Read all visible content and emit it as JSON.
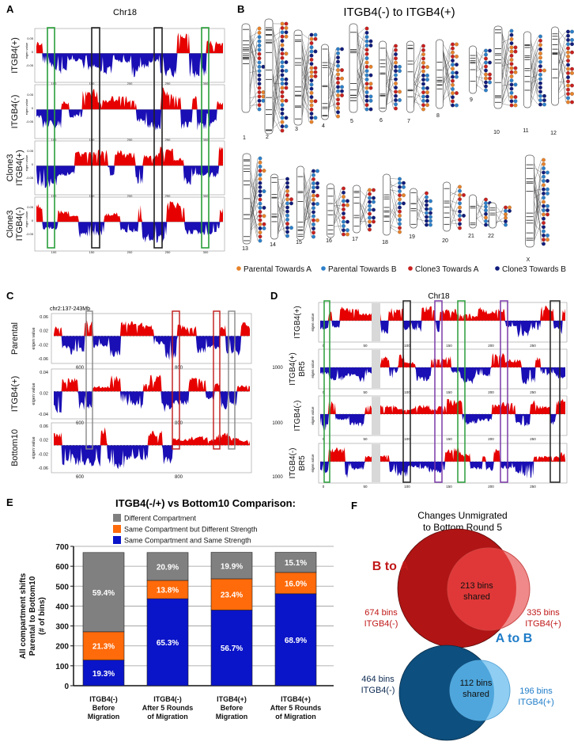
{
  "panel_a": {
    "letter": "A",
    "title": "Chr18",
    "rows": [
      {
        "label": "ITGB4(+)"
      },
      {
        "label": "ITGB4(-)"
      },
      {
        "label": [
          "Clone3",
          "ITGB4(+)"
        ]
      },
      {
        "label": [
          "Clone3",
          "ITGB4(-)"
        ]
      }
    ],
    "ticks": [
      "100",
      "150",
      "200",
      "250",
      "300"
    ]
  },
  "panel_b": {
    "letter": "B",
    "title": "ITGB4(-) to ITGB4(+)",
    "chromosomes": [
      "1",
      "2",
      "3",
      "4",
      "5",
      "6",
      "7",
      "8",
      "9",
      "10",
      "11",
      "12",
      "13",
      "14",
      "15",
      "16",
      "17",
      "18",
      "19",
      "20",
      "21",
      "22",
      "X"
    ],
    "legend": [
      {
        "label": "Parental Towards A",
        "color": "#e8822a"
      },
      {
        "label": "Parental Towards B",
        "color": "#2c7fc9"
      },
      {
        "label": "Clone3 Towards A",
        "color": "#c8201e"
      },
      {
        "label": "Clone3 Towards B",
        "color": "#101c7c"
      }
    ]
  },
  "panel_c": {
    "letter": "C",
    "region": "chr2:137-243Mb",
    "yaxis_label": "eigen value",
    "rows": [
      {
        "label": "Parental",
        "ticks": [
          "0.06",
          "0.02",
          "-0.02",
          "-0.06"
        ]
      },
      {
        "label": "ITGB4(+)",
        "ticks": [
          "0.04",
          "0.02",
          "-0.04"
        ]
      },
      {
        "label": "Bottom10",
        "ticks": [
          "0.06",
          "0.02",
          "-0.02",
          "-0.06"
        ]
      }
    ],
    "xticks": [
      "600",
      "800",
      "1000"
    ]
  },
  "panel_d": {
    "letter": "D",
    "title": "Chr18",
    "yaxis_label": "eigen value",
    "rows": [
      {
        "label": [
          "ITGB4(+)"
        ]
      },
      {
        "label": [
          "ITGB4(+)",
          "BR5"
        ]
      },
      {
        "label": [
          "ITGB4(-)"
        ]
      },
      {
        "label": [
          "ITGB4(-)",
          "BR5"
        ]
      }
    ],
    "xticks": [
      "0",
      "50",
      "100",
      "150",
      "200",
      "250"
    ]
  },
  "panel_e": {
    "letter": "E",
    "chart_data": {
      "type": "bar",
      "stacked": true,
      "title": "ITGB4(-/+) vs Bottom10 Comparison:",
      "ylabel": "All compartment shifts Parental to Bottom10 (# of bins)",
      "ylabel_lines": [
        "All compartment shifts",
        "Parental to Bottom10",
        "(# of bins)"
      ],
      "ylim": [
        0,
        700
      ],
      "yticks": [
        "0",
        "100",
        "200",
        "300",
        "400",
        "500",
        "600",
        "700"
      ],
      "grid": true,
      "categories": [
        [
          "ITGB4(-)",
          "Before",
          "Migration"
        ],
        [
          "ITGB4(-)",
          "After 5 Rounds",
          "of Migration"
        ],
        [
          "ITGB4(+)",
          "Before",
          "Migration"
        ],
        [
          "ITGB4(+)",
          "After 5 Rounds",
          "of Migration"
        ]
      ],
      "series": [
        {
          "name": "Same Compartment and Same Strength",
          "color": "#0a14c8",
          "values": [
            129,
            437,
            380,
            462
          ],
          "labels": [
            "19.3%",
            "65.3%",
            "56.7%",
            "68.9%"
          ]
        },
        {
          "name": "Same Compartment but Different Strength",
          "color": "#ff6a0a",
          "values": [
            142,
            92,
            157,
            107
          ],
          "labels": [
            "21.3%",
            "13.8%",
            "23.4%",
            "16.0%"
          ]
        },
        {
          "name": "Different Compartment",
          "color": "#808080",
          "values": [
            398,
            140,
            133,
            101
          ],
          "labels": [
            "59.4%",
            "20.9%",
            "19.9%",
            "15.1%"
          ]
        }
      ],
      "legend_order": [
        2,
        1,
        0
      ]
    }
  },
  "panel_f": {
    "letter": "F",
    "title": [
      "Changes Unmigrated",
      "to Bottom Round 5"
    ],
    "b_to_a": {
      "heading": "B to A",
      "left": [
        "674 bins",
        "ITGB4(-)"
      ],
      "shared": [
        "213 bins",
        "shared"
      ],
      "right": [
        "335 bins",
        "ITGB4(+)"
      ],
      "colors": {
        "main": "#b01414",
        "secondary": "#f08a8a",
        "overlap": "#e03838",
        "text": "#c01818"
      }
    },
    "a_to_b": {
      "heading": "A to B",
      "left": [
        "464 bins",
        "ITGB4(-)"
      ],
      "shared": [
        "112 bins",
        "shared"
      ],
      "right": [
        "196 bins",
        "ITGB4(+)"
      ],
      "colors": {
        "main": "#0d4f7e",
        "secondary": "#8fcdf2",
        "overlap": "#4ea6dc",
        "text": "#1e7cc8",
        "dark": "#0d2a52"
      }
    }
  }
}
